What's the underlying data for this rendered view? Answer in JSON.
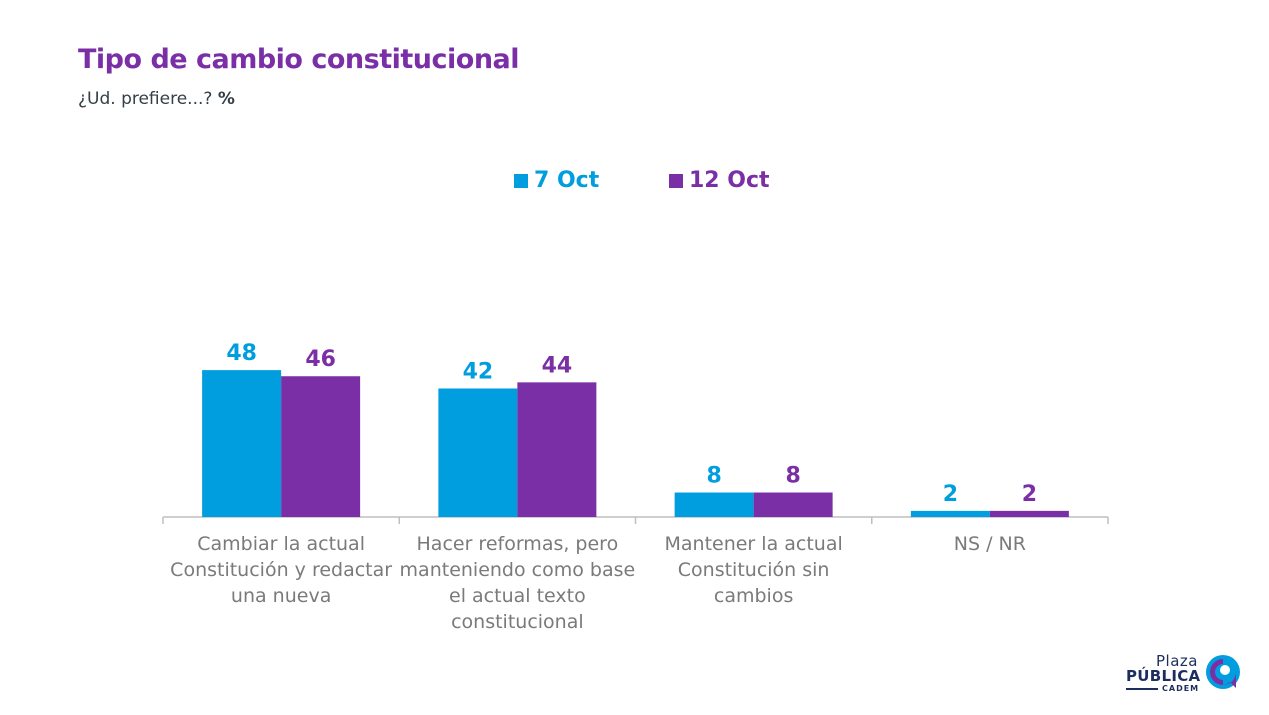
{
  "header": {
    "title": "Tipo de cambio constitucional",
    "subtitle": "¿Ud. prefiere...?",
    "unit": "%"
  },
  "colors": {
    "series_a": "#009ede",
    "series_b": "#7b2fa6",
    "axis": "#bfbfbf",
    "title": "#7b2fa6",
    "category_text": "#7a7a7a"
  },
  "chart_data": {
    "type": "bar",
    "title": "Tipo de cambio constitucional",
    "subtitle": "¿Ud. prefiere...? %",
    "categories": [
      "Cambiar la actual Constitución y redactar una nueva",
      "Hacer reformas, pero manteniendo como base el actual texto constitucional",
      "Mantener la actual Constitución sin cambios",
      "NS / NR"
    ],
    "series": [
      {
        "name": "7 Oct",
        "values": [
          48,
          42,
          8,
          2
        ]
      },
      {
        "name": "12 Oct",
        "values": [
          46,
          44,
          8,
          2
        ]
      }
    ],
    "ylim": [
      0,
      100
    ],
    "grid": false,
    "legend": "top-center",
    "data_labels": true
  },
  "logo": {
    "line1": "Plaza",
    "line2": "PÚBLICA",
    "line3": "CADEM",
    "mark_icon": "speech-bubble-swirl-icon"
  }
}
